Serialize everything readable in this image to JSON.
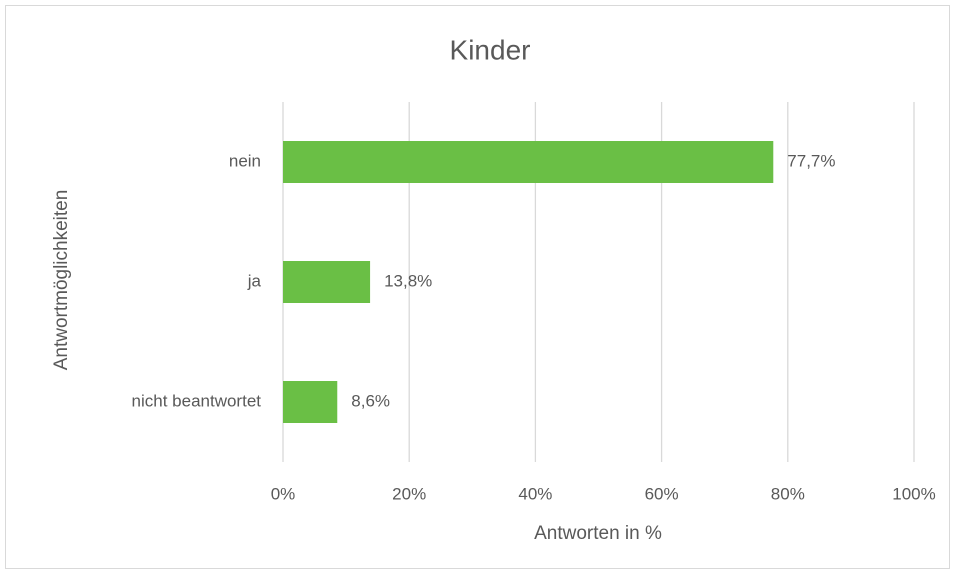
{
  "chart_data": {
    "type": "bar",
    "orientation": "horizontal",
    "title": "Kinder",
    "x_label": "Antworten in %",
    "y_label": "Antwortmöglichkeiten",
    "categories": [
      "nein",
      "ja",
      "nicht beantwortet"
    ],
    "values": [
      77.7,
      13.8,
      8.6
    ],
    "value_labels": [
      "77,7%",
      "13,8%",
      "8,6%"
    ],
    "color": "#6abf45",
    "xlim": [
      0,
      100
    ],
    "xticks": [
      {
        "value": 0,
        "label": "0%"
      },
      {
        "value": 20,
        "label": "20%"
      },
      {
        "value": 40,
        "label": "40%"
      },
      {
        "value": 60,
        "label": "60%"
      },
      {
        "value": 80,
        "label": "80%"
      },
      {
        "value": 100,
        "label": "100%"
      }
    ],
    "grid": true
  }
}
